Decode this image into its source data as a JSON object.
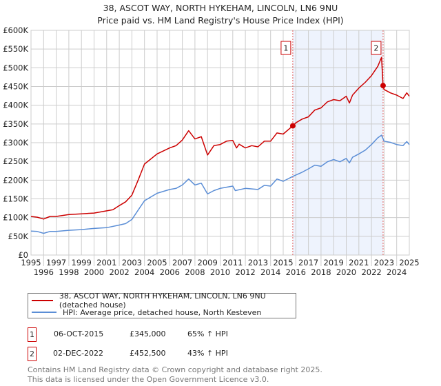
{
  "title": "38, ASCOT WAY, NORTH HYKEHAM, LINCOLN, LN6 9NU",
  "subtitle": "Price paid vs. HM Land Registry's House Price Index (HPI)",
  "colors": {
    "property": "#cc0000",
    "hpi": "#5b8ed6",
    "shade": "#eef3fd",
    "grid": "#cccccc"
  },
  "chart_data": {
    "type": "line",
    "title": "38, ASCOT WAY, NORTH HYKEHAM, LINCOLN, LN6 9NU — Price paid vs. HM Land Registry's House Price Index (HPI)",
    "xlim": [
      1995,
      2025
    ],
    "ylim": [
      0,
      600000
    ],
    "grid": true,
    "x_ticks": [
      "1995",
      "1996",
      "1997",
      "1998",
      "1999",
      "2000",
      "2001",
      "2002",
      "2003",
      "2004",
      "2005",
      "2006",
      "2007",
      "2008",
      "2009",
      "2010",
      "2011",
      "2012",
      "2013",
      "2014",
      "2015",
      "2016",
      "2017",
      "2018",
      "2019",
      "2020",
      "2021",
      "2022",
      "2023",
      "2024",
      "2025"
    ],
    "y_ticks": [
      {
        "v": 0,
        "label": "£0"
      },
      {
        "v": 50000,
        "label": "£50K"
      },
      {
        "v": 100000,
        "label": "£100K"
      },
      {
        "v": 150000,
        "label": "£150K"
      },
      {
        "v": 200000,
        "label": "£200K"
      },
      {
        "v": 250000,
        "label": "£250K"
      },
      {
        "v": 300000,
        "label": "£300K"
      },
      {
        "v": 350000,
        "label": "£350K"
      },
      {
        "v": 400000,
        "label": "£400K"
      },
      {
        "v": 450000,
        "label": "£450K"
      },
      {
        "v": 500000,
        "label": "£500K"
      },
      {
        "v": 550000,
        "label": "£550K"
      },
      {
        "v": 600000,
        "label": "£600K"
      }
    ],
    "series": [
      {
        "name": "38, ASCOT WAY, NORTH HYKEHAM, LINCOLN, LN6 9NU (detached house)",
        "x": [
          1995,
          1995.5,
          1996,
          1996.5,
          1997,
          1998,
          1999,
          2000,
          2001,
          2001.5,
          2002,
          2002.5,
          2003,
          2003.5,
          2004,
          2005,
          2006,
          2006.5,
          2007,
          2007.5,
          2008,
          2008.5,
          2009,
          2009.5,
          2010,
          2010.5,
          2011,
          2011.3,
          2011.5,
          2012,
          2012.5,
          2013,
          2013.5,
          2014,
          2014.5,
          2015,
          2015.76,
          2016,
          2016.5,
          2017,
          2017.5,
          2018,
          2018.5,
          2019,
          2019.5,
          2020,
          2020.25,
          2020.5,
          2021,
          2021.5,
          2022,
          2022.5,
          2022.8,
          2022.92,
          2023,
          2023.5,
          2024,
          2024.5,
          2024.8,
          2025
        ],
        "y": [
          103000,
          101000,
          96000,
          103000,
          103000,
          108000,
          110000,
          112000,
          118000,
          121000,
          132000,
          142000,
          160000,
          200000,
          243000,
          270000,
          286000,
          292000,
          307000,
          332000,
          310000,
          316000,
          267000,
          292000,
          295000,
          304000,
          306000,
          286000,
          296000,
          286000,
          292000,
          289000,
          304000,
          304000,
          326000,
          323000,
          345000,
          353000,
          363000,
          369000,
          387000,
          393000,
          409000,
          415000,
          412000,
          424000,
          406000,
          427000,
          446000,
          461000,
          479000,
          504000,
          528000,
          452500,
          442000,
          433000,
          427000,
          418000,
          433000,
          424000
        ]
      },
      {
        "name": "HPI: Average price, detached house, North Kesteven",
        "x": [
          1995,
          1995.5,
          1996,
          1996.5,
          1997,
          1998,
          1999,
          2000,
          2001,
          2002,
          2002.5,
          2003,
          2003.5,
          2004,
          2005,
          2006,
          2006.5,
          2007,
          2007.5,
          2008,
          2008.5,
          2009,
          2009.5,
          2010,
          2011,
          2011.2,
          2012,
          2013,
          2013.5,
          2014,
          2014.5,
          2015,
          2015.76,
          2016.5,
          2017,
          2017.5,
          2018,
          2018.5,
          2019,
          2019.5,
          2020,
          2020.25,
          2020.5,
          2021,
          2021.5,
          2022,
          2022.5,
          2022.8,
          2023,
          2023.5,
          2024,
          2024.5,
          2024.8,
          2025
        ],
        "y": [
          64000,
          63000,
          58000,
          63000,
          63000,
          66000,
          68000,
          71000,
          73000,
          80000,
          84000,
          95000,
          120000,
          145000,
          165000,
          175000,
          178000,
          187000,
          203000,
          187000,
          192000,
          163000,
          172000,
          178000,
          184000,
          172000,
          178000,
          175000,
          186000,
          184000,
          203000,
          197000,
          210000,
          221000,
          230000,
          240000,
          237000,
          249000,
          255000,
          249000,
          258000,
          246000,
          261000,
          270000,
          280000,
          295000,
          313000,
          320000,
          304000,
          301000,
          295000,
          292000,
          303000,
          295000
        ]
      }
    ],
    "annotations": [
      {
        "label": "1",
        "x": 2015.76,
        "y": 345000
      },
      {
        "label": "2",
        "x": 2022.92,
        "y": 452500
      }
    ],
    "shaded_range": [
      2015.76,
      2022.92
    ]
  },
  "legend": {
    "property": "38, ASCOT WAY, NORTH HYKEHAM, LINCOLN, LN6 9NU (detached house)",
    "hpi": "HPI: Average price, detached house, North Kesteven"
  },
  "transactions": [
    {
      "num": "1",
      "date": "06-OCT-2015",
      "price": "£345,000",
      "hpi": "65% ↑ HPI"
    },
    {
      "num": "2",
      "date": "02-DEC-2022",
      "price": "£452,500",
      "hpi": "43% ↑ HPI"
    }
  ],
  "footer": {
    "line1": "Contains HM Land Registry data © Crown copyright and database right 2025.",
    "line2": "This data is licensed under the Open Government Licence v3.0."
  }
}
